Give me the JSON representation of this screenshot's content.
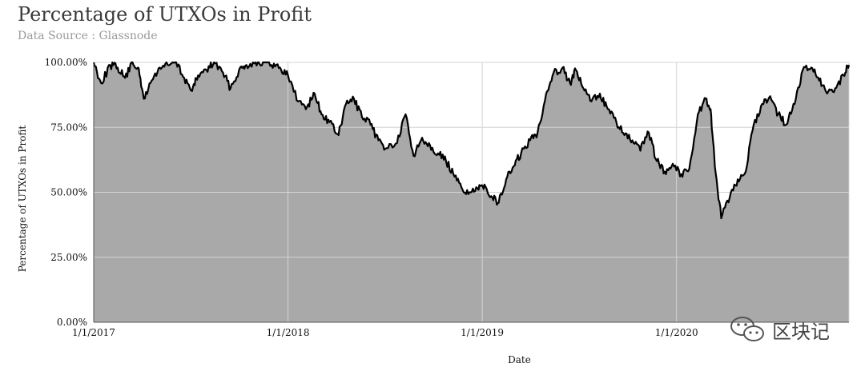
{
  "chart_data": {
    "type": "area",
    "title": "Percentage of UTXOs in Profit",
    "subtitle": "Data Source : Glassnode",
    "xlabel": "Date",
    "ylabel": "Percentage of UTXOs in Profit",
    "x_tick_labels": [
      "1/1/2017",
      "1/1/2018",
      "1/1/2019",
      "1/1/2020"
    ],
    "y_tick_labels": [
      "0.00%",
      "25.00%",
      "50.00%",
      "75.00%",
      "100.00%"
    ],
    "ylim": [
      0,
      100
    ],
    "xlim": [
      "2017-01-01",
      "2020-11-20"
    ],
    "grid": true,
    "fill_color": "#a9a9a9",
    "line_color": "#000000",
    "series": [
      {
        "x": [
          "2017-01-01",
          "2017-01-15",
          "2017-02-01",
          "2017-02-15",
          "2017-03-01",
          "2017-03-15",
          "2017-03-25",
          "2017-04-05",
          "2017-04-20",
          "2017-05-05",
          "2017-05-20",
          "2017-06-05",
          "2017-06-20",
          "2017-07-05",
          "2017-07-16",
          "2017-08-01",
          "2017-08-15",
          "2017-09-01",
          "2017-09-15",
          "2017-10-01",
          "2017-10-15",
          "2017-11-01",
          "2017-11-15",
          "2017-12-01",
          "2017-12-17",
          "2018-01-01",
          "2018-01-20",
          "2018-02-06",
          "2018-02-20",
          "2018-03-05",
          "2018-03-20",
          "2018-04-06",
          "2018-04-20",
          "2018-05-05",
          "2018-05-20",
          "2018-06-05",
          "2018-06-20",
          "2018-07-05",
          "2018-07-25",
          "2018-08-10",
          "2018-08-25",
          "2018-09-10",
          "2018-09-25",
          "2018-10-10",
          "2018-10-25",
          "2018-11-10",
          "2018-11-25",
          "2018-12-10",
          "2018-12-25",
          "2019-01-05",
          "2019-01-20",
          "2019-02-01",
          "2019-02-15",
          "2019-03-01",
          "2019-03-15",
          "2019-04-01",
          "2019-04-15",
          "2019-05-01",
          "2019-05-15",
          "2019-06-01",
          "2019-06-15",
          "2019-06-26",
          "2019-07-10",
          "2019-07-25",
          "2019-08-10",
          "2019-08-25",
          "2019-09-10",
          "2019-09-25",
          "2019-10-10",
          "2019-10-25",
          "2019-11-10",
          "2019-11-25",
          "2019-12-10",
          "2019-12-25",
          "2020-01-10",
          "2020-01-25",
          "2020-02-10",
          "2020-02-25",
          "2020-03-05",
          "2020-03-13",
          "2020-03-25",
          "2020-04-10",
          "2020-04-25",
          "2020-05-10",
          "2020-05-25",
          "2020-06-10",
          "2020-06-25",
          "2020-07-10",
          "2020-07-25",
          "2020-08-10",
          "2020-08-25",
          "2020-09-10",
          "2020-09-25",
          "2020-10-10",
          "2020-10-25",
          "2020-11-10",
          "2020-11-20"
        ],
        "values": [
          100,
          92,
          99,
          98,
          94,
          100,
          98,
          86,
          93,
          98,
          99,
          100,
          94,
          89,
          95,
          97,
          100,
          96,
          90,
          97,
          99,
          100,
          100,
          99,
          98,
          95,
          85,
          83,
          88,
          80,
          77,
          72,
          84,
          86,
          79,
          76,
          70,
          67,
          69,
          80,
          64,
          71,
          68,
          65,
          62,
          56,
          51,
          50,
          51,
          53,
          48,
          46,
          55,
          60,
          65,
          70,
          73,
          88,
          96,
          98,
          92,
          97,
          90,
          85,
          88,
          82,
          77,
          72,
          70,
          66,
          73,
          62,
          58,
          61,
          57,
          59,
          80,
          86,
          82,
          60,
          40,
          48,
          55,
          58,
          76,
          84,
          87,
          80,
          76,
          84,
          97,
          98,
          93,
          88,
          90,
          95,
          99
        ]
      }
    ]
  },
  "watermark": {
    "text": "区块记",
    "icon": "wechat-icon"
  }
}
